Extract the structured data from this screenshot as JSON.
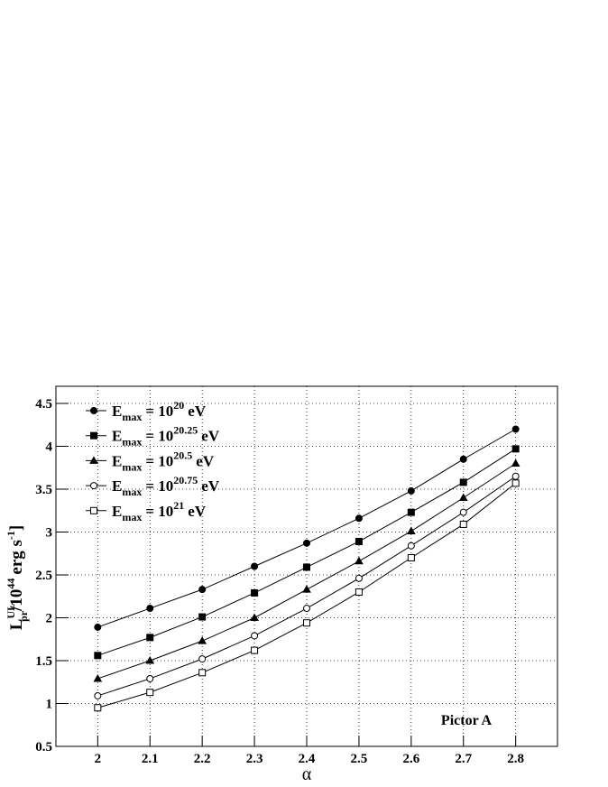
{
  "chart_data": {
    "type": "line",
    "xlabel": "α",
    "ylabel": {
      "base": "L",
      "sup": "UL",
      "sub": "pr",
      "text": "/10",
      "exp": "44",
      "unit": "erg s",
      "unit_exp": "-1",
      "tail": "]"
    },
    "annotation": "Pictor A",
    "x": [
      2,
      2.1,
      2.2,
      2.3,
      2.4,
      2.5,
      2.6,
      2.7,
      2.8
    ],
    "xlim": [
      1.92,
      2.88
    ],
    "ylim": [
      0.5,
      4.7
    ],
    "xticks": [
      2,
      2.1,
      2.2,
      2.3,
      2.4,
      2.5,
      2.6,
      2.7,
      2.8
    ],
    "yticks": [
      0.5,
      1,
      1.5,
      2,
      2.5,
      3,
      3.5,
      4,
      4.5
    ],
    "grid": true,
    "legend": "upper left",
    "series": [
      {
        "name": {
          "base": "E",
          "sub": "max",
          "text": "= 10",
          "sup": "20",
          "unit": "eV"
        },
        "color": "#000000",
        "marker": "circle",
        "filled": true,
        "values": [
          1.89,
          2.11,
          2.33,
          2.6,
          2.87,
          3.16,
          3.48,
          3.85,
          4.2
        ]
      },
      {
        "name": {
          "base": "E",
          "sub": "max",
          "text": "= 10",
          "sup": "20.25",
          "unit": "eV"
        },
        "color": "#000000",
        "marker": "square",
        "filled": true,
        "values": [
          1.56,
          1.77,
          2.01,
          2.29,
          2.59,
          2.89,
          3.23,
          3.58,
          3.97
        ]
      },
      {
        "name": {
          "base": "E",
          "sub": "max",
          "text": "= 10",
          "sup": "20.5",
          "unit": "eV"
        },
        "color": "#000000",
        "marker": "triangle",
        "filled": true,
        "values": [
          1.29,
          1.5,
          1.73,
          2.0,
          2.33,
          2.66,
          3.01,
          3.4,
          3.8
        ]
      },
      {
        "name": {
          "base": "E",
          "sub": "max",
          "text": "= 10",
          "sup": "20.75",
          "unit": "eV"
        },
        "color": "#000000",
        "marker": "circle",
        "filled": false,
        "values": [
          1.09,
          1.29,
          1.52,
          1.79,
          2.11,
          2.46,
          2.84,
          3.23,
          3.65
        ]
      },
      {
        "name": {
          "base": "E",
          "sub": "max",
          "text": "= 10",
          "sup": "21",
          "unit": "eV"
        },
        "color": "#000000",
        "marker": "square",
        "filled": false,
        "values": [
          0.95,
          1.13,
          1.36,
          1.62,
          1.94,
          2.3,
          2.7,
          3.09,
          3.57
        ]
      }
    ]
  }
}
